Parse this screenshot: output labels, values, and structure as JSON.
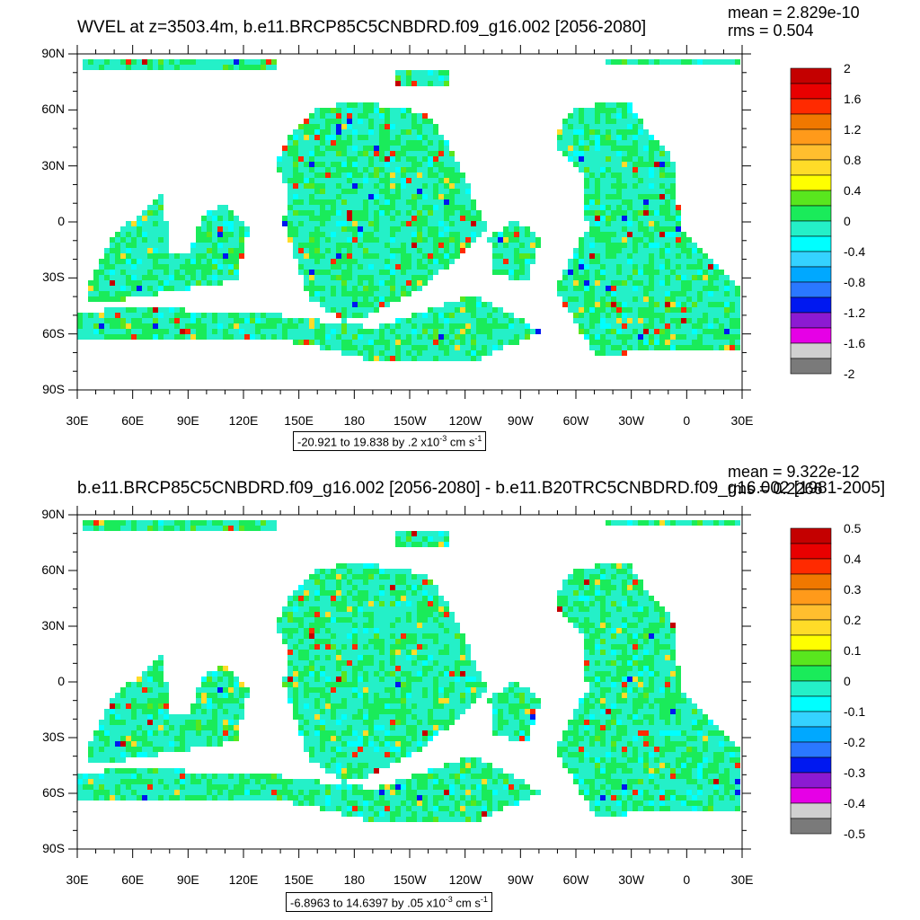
{
  "panels": [
    {
      "title": "WVEL at z=3503.4m, b.e11.BRCP85C5CNBDRD.f09_g16.002 [2056-2080]",
      "mean": "mean = 2.829e-10",
      "rms": "rms = 0.504",
      "range_text": "-20.921 to 19.838 by .2 x10",
      "range_exp": "-3",
      "range_units": " cm s",
      "range_units_exp": "-1",
      "colorbar_labels": [
        "2",
        "1.6",
        "1.2",
        "0.8",
        "0.4",
        "0",
        "-0.4",
        "-0.8",
        "-1.2",
        "-1.6",
        "-2"
      ]
    },
    {
      "title": "b.e11.BRCP85C5CNBDRD.f09_g16.002 [2056-2080] - b.e11.B20TRC5CNBDRD.f09_g16.002 [1981-2005]",
      "mean": "mean = 9.322e-12",
      "rms": "rms = 0.2266",
      "range_text": "-6.8963 to 14.6397 by .05 x10",
      "range_exp": "-3",
      "range_units": " cm s",
      "range_units_exp": "-1",
      "colorbar_labels": [
        "0.5",
        "0.4",
        "0.3",
        "0.2",
        "0.1",
        "0",
        "-0.1",
        "-0.2",
        "-0.3",
        "-0.4",
        "-0.5"
      ]
    }
  ],
  "axes": {
    "lat_labels": [
      "90N",
      "60N",
      "30N",
      "0",
      "30S",
      "60S",
      "90S"
    ],
    "lon_labels": [
      "30E",
      "60E",
      "90E",
      "120E",
      "150E",
      "180",
      "150W",
      "120W",
      "90W",
      "60W",
      "30W",
      "0",
      "30E"
    ]
  },
  "colors": {
    "palette": [
      "#c40000",
      "#e80000",
      "#ff2a00",
      "#f07800",
      "#ff9a1a",
      "#ffbe2e",
      "#ffdc28",
      "#ffff00",
      "#59e61e",
      "#1aeb5a",
      "#24f0c8",
      "#00ffff",
      "#34d2ff",
      "#00a8ff",
      "#2a78ff",
      "#0018f0",
      "#8c1ad2",
      "#e600e6",
      "#d0d0d0",
      "#7a7a7a"
    ],
    "mid_green": "#1aeb5a",
    "cyan": "#24f0c8"
  }
}
